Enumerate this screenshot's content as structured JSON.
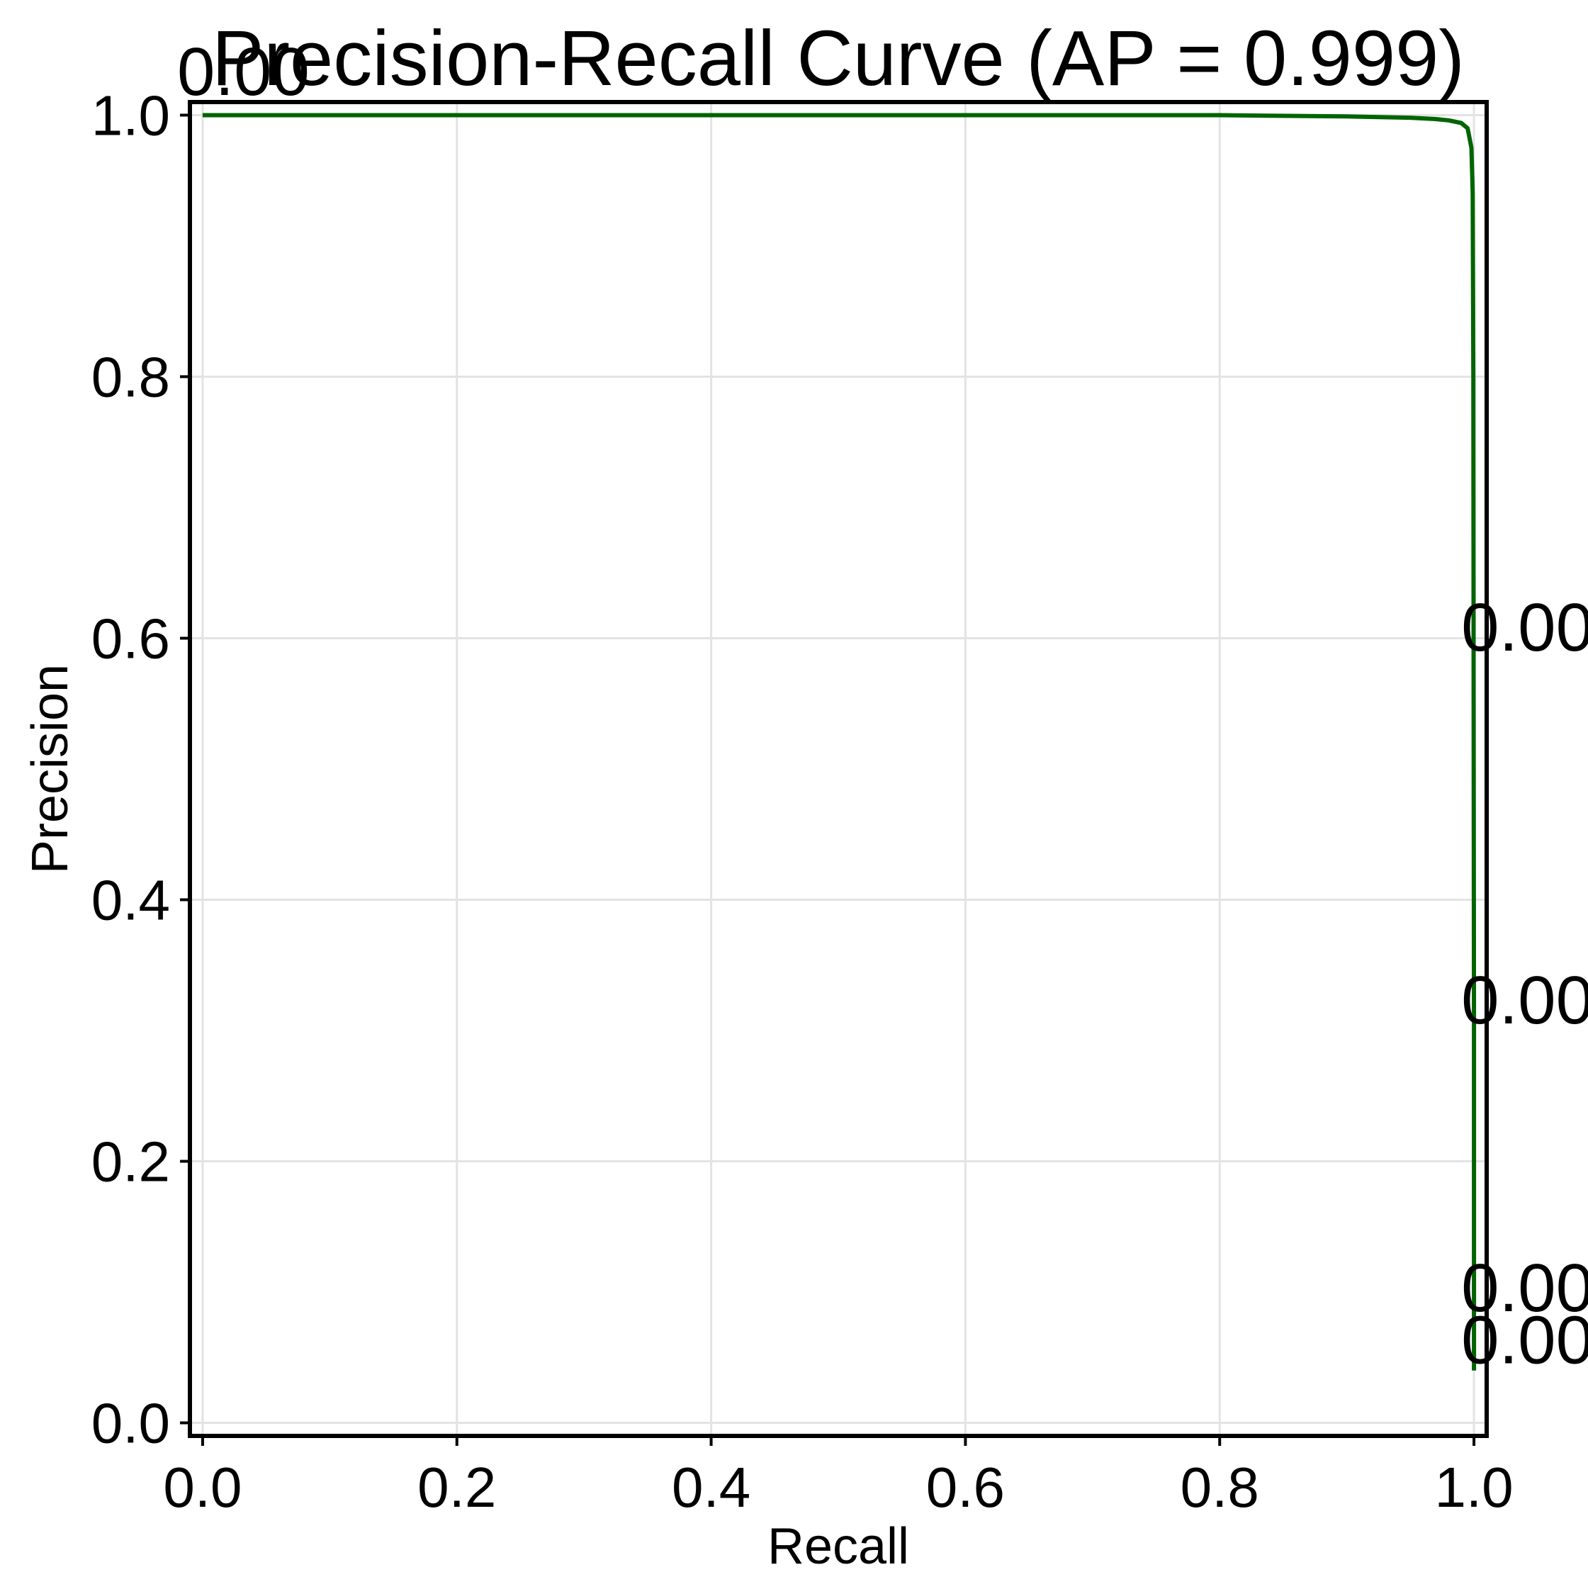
{
  "chart_data": {
    "type": "line",
    "title": "Precision-Recall Curve (AP = 0.999)",
    "xlabel": "Recall",
    "ylabel": "Precision",
    "xlim": [
      -0.01,
      1.01
    ],
    "ylim": [
      -0.01,
      1.01
    ],
    "xticks": [
      0.0,
      0.2,
      0.4,
      0.6,
      0.8,
      1.0
    ],
    "yticks": [
      0.0,
      0.2,
      0.4,
      0.6,
      0.8,
      1.0
    ],
    "xtick_labels": [
      "0.0",
      "0.2",
      "0.4",
      "0.6",
      "0.8",
      "1.0"
    ],
    "ytick_labels": [
      "0.0",
      "0.2",
      "0.4",
      "0.6",
      "0.8",
      "1.0"
    ],
    "grid": true,
    "series": [
      {
        "color": "#006400",
        "x": [
          0.0,
          0.1,
          0.2,
          0.3,
          0.4,
          0.5,
          0.6,
          0.7,
          0.8,
          0.9,
          0.95,
          0.97,
          0.98,
          0.99,
          0.995,
          0.998,
          0.999,
          0.9995,
          0.9998,
          1.0,
          1.0,
          1.0,
          1.0
        ],
        "y": [
          1.0,
          1.0,
          1.0,
          1.0,
          1.0,
          1.0,
          1.0,
          1.0,
          1.0,
          0.999,
          0.998,
          0.997,
          0.996,
          0.994,
          0.99,
          0.975,
          0.94,
          0.8,
          0.5,
          0.3,
          0.15,
          0.08,
          0.04
        ]
      }
    ],
    "annotations": [
      {
        "text": "0.00",
        "x": -0.02,
        "y": 1.035
      },
      {
        "text": "0.00",
        "x": 0.99,
        "y": 0.61
      },
      {
        "text": "0.00",
        "x": 0.99,
        "y": 0.325
      },
      {
        "text": "0.00",
        "x": 0.99,
        "y": 0.105
      },
      {
        "text": "0.00",
        "x": 0.99,
        "y": 0.065
      }
    ]
  }
}
